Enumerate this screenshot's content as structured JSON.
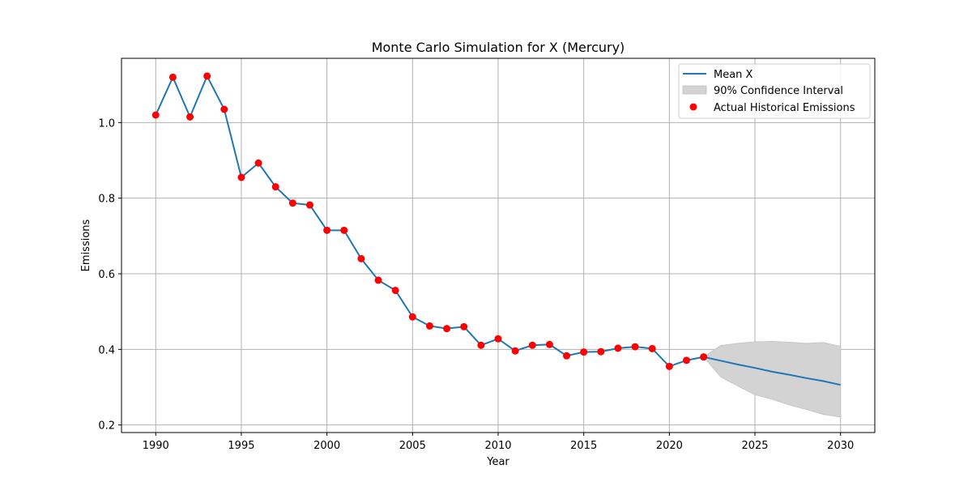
{
  "chart_data": {
    "type": "line",
    "title": "Monte Carlo Simulation for X (Mercury)",
    "xlabel": "Year",
    "ylabel": "Emissions",
    "xlim": [
      1988,
      2032
    ],
    "ylim": [
      0.18,
      1.17
    ],
    "xticks": [
      1990,
      1995,
      2000,
      2005,
      2010,
      2015,
      2020,
      2025,
      2030
    ],
    "yticks": [
      0.2,
      0.4,
      0.6,
      0.8,
      1.0
    ],
    "ytick_labels": [
      "0.2",
      "0.4",
      "0.6",
      "0.8",
      "1.0"
    ],
    "grid": true,
    "legend_position": "top-right",
    "legend": {
      "mean_label": "Mean X",
      "ci_label": "90% Confidence Interval",
      "actual_label": "Actual Historical Emissions"
    },
    "colors": {
      "mean_line": "#1f77b4",
      "ci_fill": "#d3d3d3",
      "actual_points": "#ff0000",
      "grid": "#b0b0b0"
    },
    "series": [
      {
        "name": "Mean X",
        "x": [
          1990,
          1991,
          1992,
          1993,
          1994,
          1995,
          1996,
          1997,
          1998,
          1999,
          2000,
          2001,
          2002,
          2003,
          2004,
          2005,
          2006,
          2007,
          2008,
          2009,
          2010,
          2011,
          2012,
          2013,
          2014,
          2015,
          2016,
          2017,
          2018,
          2019,
          2020,
          2021,
          2022,
          2023,
          2024,
          2025,
          2026,
          2027,
          2028,
          2029,
          2030
        ],
        "y": [
          1.02,
          1.12,
          1.015,
          1.123,
          1.035,
          0.855,
          0.893,
          0.83,
          0.787,
          0.782,
          0.715,
          0.715,
          0.64,
          0.583,
          0.556,
          0.486,
          0.462,
          0.455,
          0.46,
          0.411,
          0.428,
          0.396,
          0.411,
          0.413,
          0.383,
          0.393,
          0.394,
          0.403,
          0.407,
          0.402,
          0.355,
          0.371,
          0.38,
          0.37,
          0.36,
          0.351,
          0.341,
          0.333,
          0.324,
          0.316,
          0.306
        ]
      },
      {
        "name": "90% Confidence Interval",
        "x": [
          2022,
          2023,
          2024,
          2025,
          2026,
          2027,
          2028,
          2029,
          2030
        ],
        "lower": [
          0.38,
          0.327,
          0.303,
          0.28,
          0.268,
          0.253,
          0.241,
          0.228,
          0.221
        ],
        "upper": [
          0.38,
          0.41,
          0.416,
          0.42,
          0.421,
          0.419,
          0.416,
          0.418,
          0.408
        ]
      },
      {
        "name": "Actual Historical Emissions",
        "x": [
          1990,
          1991,
          1992,
          1993,
          1994,
          1995,
          1996,
          1997,
          1998,
          1999,
          2000,
          2001,
          2002,
          2003,
          2004,
          2005,
          2006,
          2007,
          2008,
          2009,
          2010,
          2011,
          2012,
          2013,
          2014,
          2015,
          2016,
          2017,
          2018,
          2019,
          2020,
          2021,
          2022
        ],
        "y": [
          1.02,
          1.12,
          1.015,
          1.123,
          1.035,
          0.855,
          0.893,
          0.83,
          0.787,
          0.782,
          0.715,
          0.715,
          0.64,
          0.583,
          0.556,
          0.486,
          0.462,
          0.455,
          0.46,
          0.411,
          0.428,
          0.396,
          0.411,
          0.413,
          0.383,
          0.393,
          0.394,
          0.403,
          0.407,
          0.402,
          0.355,
          0.371,
          0.38
        ]
      }
    ]
  }
}
